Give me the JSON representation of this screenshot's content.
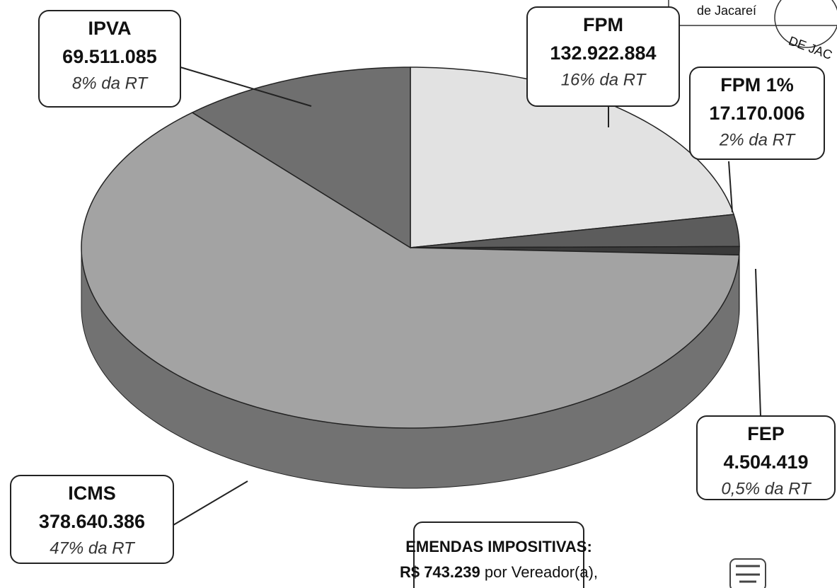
{
  "chart_data": {
    "type": "pie",
    "categories": [
      "FPM",
      "FPM 1%",
      "FEP",
      "ICMS",
      "IPVA"
    ],
    "values": [
      132922884,
      17170006,
      4504419,
      378640386,
      69511085
    ],
    "value_labels": [
      "132.922.884",
      "17.170.006",
      "4.504.419",
      "378.640.386",
      "69.511.085"
    ],
    "shares": [
      16,
      2,
      0.5,
      47,
      8
    ],
    "share_labels": [
      "16% da RT",
      "2% da RT",
      "0,5% da RT",
      "47% da RT",
      "8% da RT"
    ],
    "colors": [
      "#e2e2e2",
      "#5c5c5c",
      "#3a3a3a",
      "#a3a3a3",
      "#6f6f6f"
    ],
    "annotations": [
      "EMENDAS IMPOSITIVAS:",
      "R$ 743.239",
      "por Vereador(a),"
    ],
    "stamp": [
      "de Jacareí",
      "DE JAC"
    ]
  }
}
